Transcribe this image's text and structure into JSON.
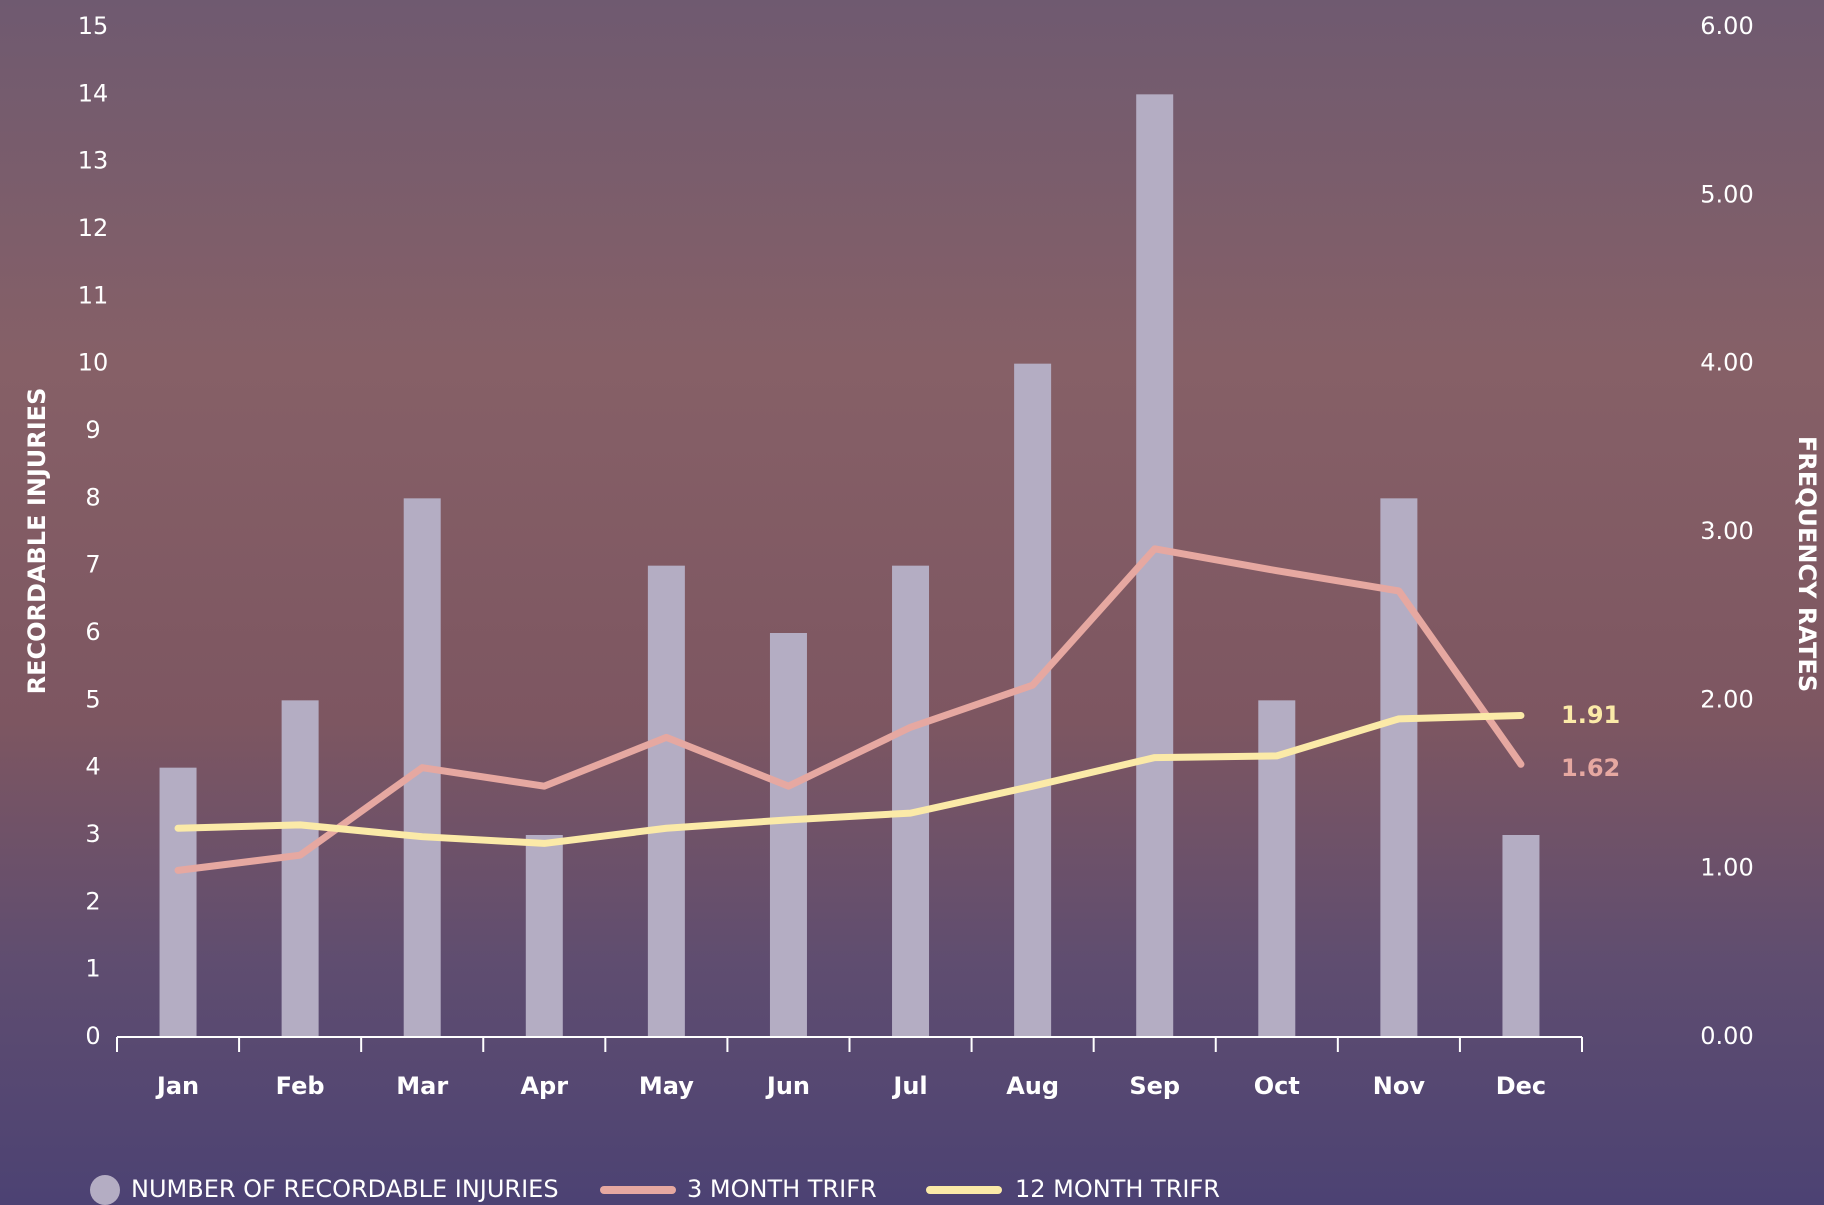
{
  "chart_data": {
    "type": "bar",
    "categories": [
      "Jan",
      "Feb",
      "Mar",
      "Apr",
      "May",
      "Jun",
      "Jul",
      "Aug",
      "Sep",
      "Oct",
      "Nov",
      "Dec"
    ],
    "ylabel": "RECORDABLE INJURIES",
    "y2label": "FREQUENCY RATES",
    "ylim": [
      0,
      15
    ],
    "yticks": [
      0,
      1,
      2,
      3,
      4,
      5,
      6,
      7,
      8,
      9,
      10,
      11,
      12,
      13,
      14,
      15
    ],
    "y2lim": [
      0,
      6
    ],
    "y2ticks": [
      {
        "value": 0,
        "label": "0.00"
      },
      {
        "value": 1,
        "label": "1.00"
      },
      {
        "value": 2,
        "label": "2.00"
      },
      {
        "value": 3,
        "label": "3.00"
      },
      {
        "value": 4,
        "label": "4.00"
      },
      {
        "value": 5,
        "label": "5.00"
      },
      {
        "value": 6,
        "label": "6.00"
      }
    ],
    "grid": false,
    "series": [
      {
        "name": "NUMBER OF RECORDABLE INJURIES",
        "type": "bar",
        "color": "#b4adc3",
        "values": [
          4,
          5,
          8,
          3,
          7,
          6,
          7,
          10,
          14,
          5,
          8,
          3
        ]
      },
      {
        "name": "3 MONTH TRIFR",
        "type": "line",
        "axis": "y2",
        "color": "#e6a8a1",
        "values": [
          0.99,
          1.08,
          1.6,
          1.49,
          1.78,
          1.49,
          1.84,
          2.09,
          2.9,
          2.77,
          2.65,
          1.62
        ]
      },
      {
        "name": "12 MONTH TRIFR",
        "type": "line",
        "axis": "y2",
        "color": "#fbeaa8",
        "values": [
          1.24,
          1.26,
          1.19,
          1.15,
          1.24,
          1.29,
          1.33,
          1.49,
          1.66,
          1.67,
          1.89,
          1.91
        ]
      }
    ]
  }
}
